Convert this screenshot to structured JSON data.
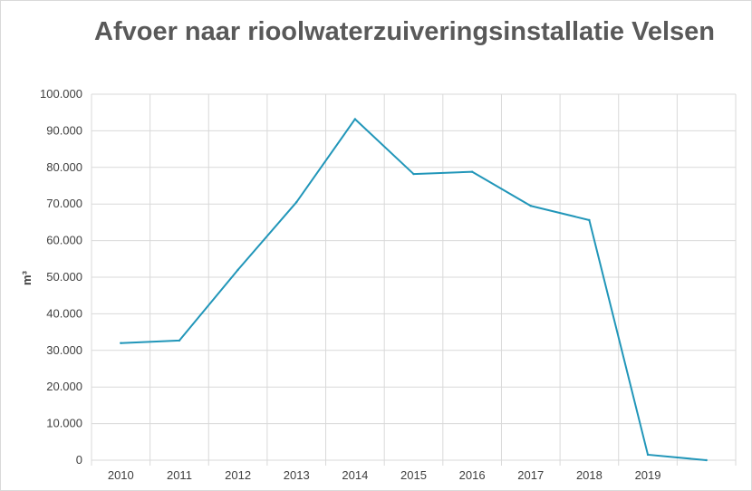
{
  "chart_data": {
    "type": "line",
    "title": "Afvoer naar rioolwaterzuiveringsinstallatie Velsen",
    "xlabel": "",
    "ylabel": "m³",
    "ylim": [
      0,
      100000
    ],
    "y_ticks": [
      "0",
      "10.000",
      "20.000",
      "30.000",
      "40.000",
      "50.000",
      "60.000",
      "70.000",
      "80.000",
      "90.000",
      "100.000"
    ],
    "categories": [
      "2010",
      "2011",
      "2012",
      "2013",
      "2014",
      "2015",
      "2016",
      "2017",
      "2018",
      "2019",
      ""
    ],
    "series": [
      {
        "values": [
          32000,
          32700,
          52000,
          70500,
          93200,
          78200,
          78800,
          69500,
          65600,
          1500,
          0
        ],
        "color": "#2196b9"
      }
    ],
    "grid": true,
    "legend": "none"
  }
}
